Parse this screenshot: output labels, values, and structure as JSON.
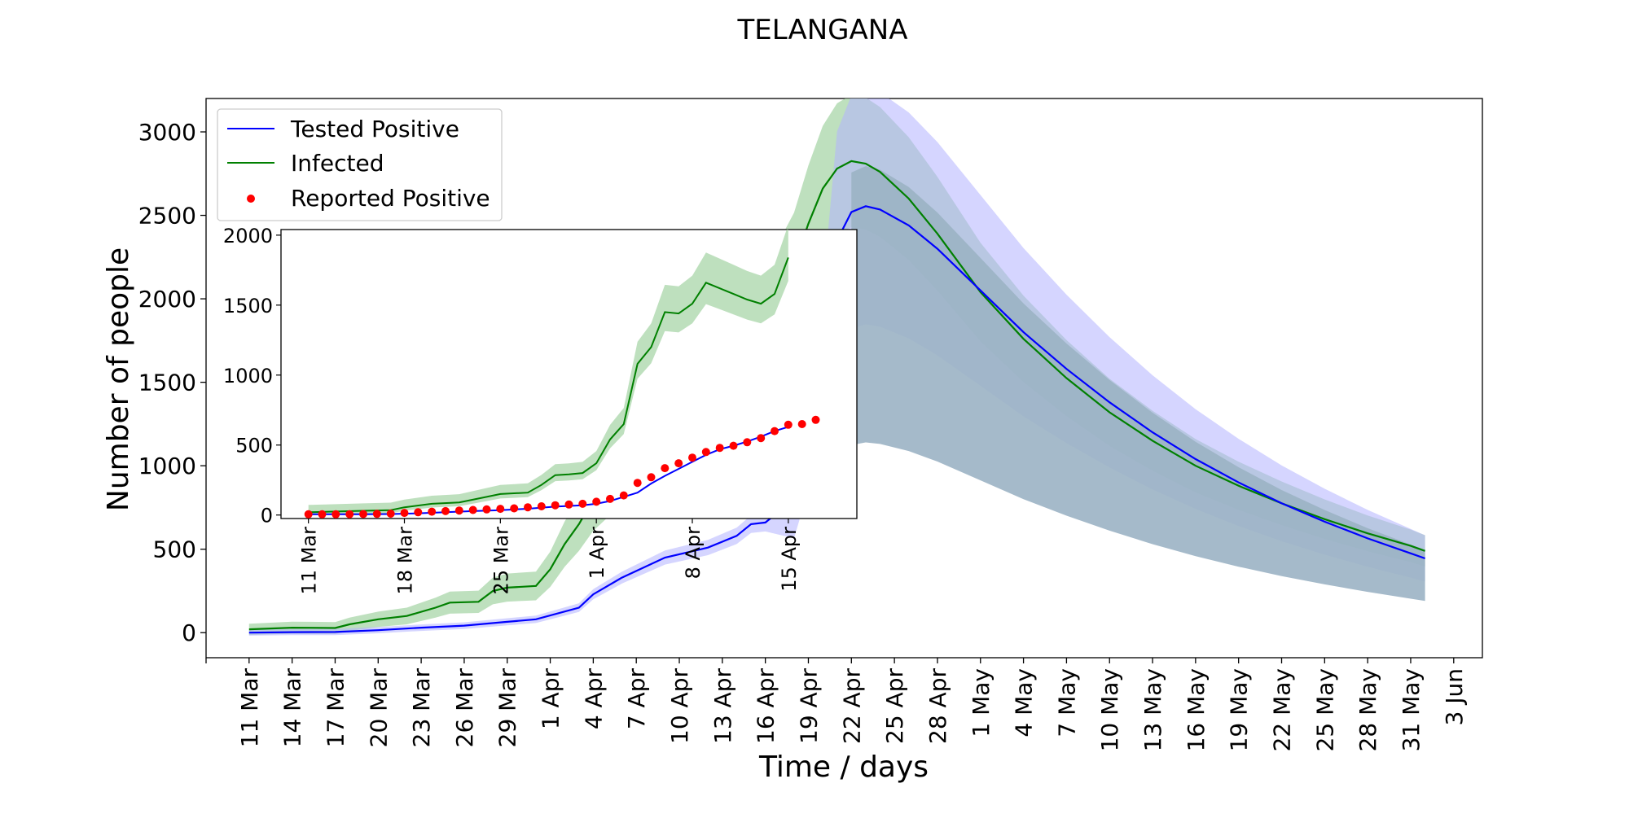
{
  "colors": {
    "tested": "#0000ff",
    "tested_band": "#b3b3ff",
    "infected": "#008000",
    "infected_band": "#a8d5a8",
    "overlap_band": "#9bb3c4",
    "reported": "#ff0000"
  },
  "chart_data": [
    {
      "type": "line",
      "title": "TELANGANA",
      "xlabel": "Time / days",
      "ylabel": "Number of people",
      "x_unit": "date (2020)",
      "xlim": [
        "2020-03-08",
        "2020-06-05"
      ],
      "ylim": [
        -150,
        3200
      ],
      "yticks": [
        0,
        500,
        1000,
        1500,
        2000,
        2500,
        3000
      ],
      "xtick_labels": [
        "11 Mar",
        "14 Mar",
        "17 Mar",
        "20 Mar",
        "23 Mar",
        "26 Mar",
        "29 Mar",
        "1 Apr",
        "4 Apr",
        "7 Apr",
        "10 Apr",
        "13 Apr",
        "16 Apr",
        "19 Apr",
        "22 Apr",
        "25 Apr",
        "28 Apr",
        "1 May",
        "4 May",
        "7 May",
        "10 May",
        "13 May",
        "16 May",
        "19 May",
        "22 May",
        "25 May",
        "28 May",
        "31 May",
        "3 Jun"
      ],
      "legend_position": "upper-left",
      "grid": false,
      "series": [
        {
          "name": "Tested Positive",
          "kind": "line",
          "band": "blue",
          "points": [
            [
              "2020-03-11",
              0
            ],
            [
              "2020-03-14",
              3
            ],
            [
              "2020-03-17",
              4
            ],
            [
              "2020-03-20",
              15
            ],
            [
              "2020-03-23",
              30
            ],
            [
              "2020-03-26",
              42
            ],
            [
              "2020-03-29",
              65
            ],
            [
              "2020-03-31",
              80
            ],
            [
              "2020-04-03",
              150
            ],
            [
              "2020-04-04",
              230
            ],
            [
              "2020-04-06",
              330
            ],
            [
              "2020-04-09",
              450
            ],
            [
              "2020-04-12",
              510
            ],
            [
              "2020-04-14",
              580
            ],
            [
              "2020-04-15",
              650
            ],
            [
              "2020-04-16",
              660
            ],
            [
              "2020-04-18",
              800
            ],
            [
              "2020-04-20",
              1600
            ],
            [
              "2020-04-21",
              2350
            ],
            [
              "2020-04-22",
              2520
            ],
            [
              "2020-04-23",
              2555
            ],
            [
              "2020-04-24",
              2535
            ],
            [
              "2020-04-26",
              2440
            ],
            [
              "2020-04-28",
              2300
            ],
            [
              "2020-05-01",
              2050
            ],
            [
              "2020-05-04",
              1800
            ],
            [
              "2020-05-07",
              1580
            ],
            [
              "2020-05-10",
              1380
            ],
            [
              "2020-05-13",
              1200
            ],
            [
              "2020-05-16",
              1040
            ],
            [
              "2020-05-19",
              900
            ],
            [
              "2020-05-22",
              775
            ],
            [
              "2020-05-25",
              665
            ],
            [
              "2020-05-28",
              565
            ],
            [
              "2020-05-31",
              475
            ],
            [
              "2020-06-01",
              445
            ]
          ]
        },
        {
          "name": "Infected",
          "kind": "line",
          "band": "green",
          "points": [
            [
              "2020-03-11",
              20
            ],
            [
              "2020-03-14",
              30
            ],
            [
              "2020-03-17",
              28
            ],
            [
              "2020-03-18",
              50
            ],
            [
              "2020-03-20",
              80
            ],
            [
              "2020-03-22",
              100
            ],
            [
              "2020-03-24",
              150
            ],
            [
              "2020-03-25",
              180
            ],
            [
              "2020-03-27",
              185
            ],
            [
              "2020-03-28",
              250
            ],
            [
              "2020-03-29",
              270
            ],
            [
              "2020-03-31",
              280
            ],
            [
              "2020-04-01",
              380
            ],
            [
              "2020-04-02",
              530
            ],
            [
              "2020-04-03",
              650
            ],
            [
              "2020-04-04",
              800
            ],
            [
              "2020-04-06",
              1000
            ],
            [
              "2020-04-08",
              1300
            ],
            [
              "2020-04-10",
              1400
            ],
            [
              "2020-04-12",
              1600
            ],
            [
              "2020-04-14",
              1700
            ],
            [
              "2020-04-16",
              1800
            ],
            [
              "2020-04-18",
              2200
            ],
            [
              "2020-04-19",
              2450
            ],
            [
              "2020-04-20",
              2660
            ],
            [
              "2020-04-21",
              2780
            ],
            [
              "2020-04-22",
              2825
            ],
            [
              "2020-04-23",
              2810
            ],
            [
              "2020-04-24",
              2760
            ],
            [
              "2020-04-26",
              2600
            ],
            [
              "2020-04-28",
              2390
            ],
            [
              "2020-05-01",
              2040
            ],
            [
              "2020-05-04",
              1760
            ],
            [
              "2020-05-07",
              1525
            ],
            [
              "2020-05-10",
              1320
            ],
            [
              "2020-05-13",
              1150
            ],
            [
              "2020-05-16",
              1000
            ],
            [
              "2020-05-19",
              880
            ],
            [
              "2020-05-22",
              775
            ],
            [
              "2020-05-25",
              680
            ],
            [
              "2020-05-28",
              595
            ],
            [
              "2020-05-31",
              520
            ],
            [
              "2020-06-01",
              490
            ]
          ]
        },
        {
          "name": "Reported Positive",
          "kind": "scatter",
          "points": []
        }
      ]
    },
    {
      "type": "line",
      "inset": true,
      "title": "",
      "xlabel": "",
      "ylabel": "",
      "x_unit": "date (2020)",
      "xlim": [
        "2020-03-09",
        "2020-04-20"
      ],
      "ylim": [
        -25,
        2040
      ],
      "yticks": [
        0,
        500,
        1000,
        1500,
        2000
      ],
      "xtick_labels": [
        "11 Mar",
        "18 Mar",
        "25 Mar",
        "1 Apr",
        "8 Apr",
        "15 Apr"
      ],
      "grid": false,
      "series": [
        {
          "name": "Tested Positive",
          "kind": "line",
          "points": [
            [
              "2020-03-11",
              5
            ],
            [
              "2020-03-13",
              5
            ],
            [
              "2020-03-15",
              6
            ],
            [
              "2020-03-17",
              7
            ],
            [
              "2020-03-19",
              12
            ],
            [
              "2020-03-21",
              20
            ],
            [
              "2020-03-23",
              28
            ],
            [
              "2020-03-25",
              35
            ],
            [
              "2020-03-27",
              45
            ],
            [
              "2020-03-29",
              60
            ],
            [
              "2020-03-31",
              70
            ],
            [
              "2020-04-01",
              80
            ],
            [
              "2020-04-02",
              100
            ],
            [
              "2020-04-03",
              130
            ],
            [
              "2020-04-04",
              160
            ],
            [
              "2020-04-05",
              225
            ],
            [
              "2020-04-06",
              280
            ],
            [
              "2020-04-07",
              330
            ],
            [
              "2020-04-08",
              380
            ],
            [
              "2020-04-09",
              430
            ],
            [
              "2020-04-10",
              470
            ],
            [
              "2020-04-11",
              495
            ],
            [
              "2020-04-12",
              525
            ],
            [
              "2020-04-13",
              560
            ],
            [
              "2020-04-14",
              600
            ],
            [
              "2020-04-15",
              630
            ]
          ]
        },
        {
          "name": "Infected",
          "kind": "line",
          "points": [
            [
              "2020-03-11",
              20
            ],
            [
              "2020-03-13",
              25
            ],
            [
              "2020-03-15",
              30
            ],
            [
              "2020-03-17",
              35
            ],
            [
              "2020-03-18",
              55
            ],
            [
              "2020-03-20",
              80
            ],
            [
              "2020-03-22",
              90
            ],
            [
              "2020-03-24",
              130
            ],
            [
              "2020-03-25",
              150
            ],
            [
              "2020-03-27",
              160
            ],
            [
              "2020-03-28",
              215
            ],
            [
              "2020-03-29",
              285
            ],
            [
              "2020-03-30",
              290
            ],
            [
              "2020-03-31",
              300
            ],
            [
              "2020-04-01",
              370
            ],
            [
              "2020-04-02",
              540
            ],
            [
              "2020-04-03",
              650
            ],
            [
              "2020-04-04",
              1080
            ],
            [
              "2020-04-05",
              1200
            ],
            [
              "2020-04-06",
              1450
            ],
            [
              "2020-04-07",
              1440
            ],
            [
              "2020-04-08",
              1510
            ],
            [
              "2020-04-09",
              1660
            ],
            [
              "2020-04-10",
              1620
            ],
            [
              "2020-04-11",
              1580
            ],
            [
              "2020-04-12",
              1540
            ],
            [
              "2020-04-13",
              1510
            ],
            [
              "2020-04-14",
              1580
            ],
            [
              "2020-04-15",
              1840
            ]
          ]
        },
        {
          "name": "Reported Positive",
          "kind": "scatter",
          "points": [
            [
              "2020-03-11",
              5
            ],
            [
              "2020-03-12",
              5
            ],
            [
              "2020-03-13",
              5
            ],
            [
              "2020-03-14",
              6
            ],
            [
              "2020-03-15",
              7
            ],
            [
              "2020-03-16",
              8
            ],
            [
              "2020-03-17",
              10
            ],
            [
              "2020-03-18",
              15
            ],
            [
              "2020-03-19",
              20
            ],
            [
              "2020-03-20",
              24
            ],
            [
              "2020-03-21",
              28
            ],
            [
              "2020-03-22",
              32
            ],
            [
              "2020-03-23",
              36
            ],
            [
              "2020-03-24",
              40
            ],
            [
              "2020-03-25",
              44
            ],
            [
              "2020-03-26",
              48
            ],
            [
              "2020-03-27",
              55
            ],
            [
              "2020-03-28",
              62
            ],
            [
              "2020-03-29",
              70
            ],
            [
              "2020-03-30",
              75
            ],
            [
              "2020-03-31",
              80
            ],
            [
              "2020-04-01",
              95
            ],
            [
              "2020-04-02",
              115
            ],
            [
              "2020-04-03",
              140
            ],
            [
              "2020-04-04",
              230
            ],
            [
              "2020-04-05",
              270
            ],
            [
              "2020-04-06",
              335
            ],
            [
              "2020-04-07",
              370
            ],
            [
              "2020-04-08",
              410
            ],
            [
              "2020-04-09",
              450
            ],
            [
              "2020-04-10",
              480
            ],
            [
              "2020-04-11",
              495
            ],
            [
              "2020-04-12",
              520
            ],
            [
              "2020-04-13",
              550
            ],
            [
              "2020-04-14",
              600
            ],
            [
              "2020-04-15",
              645
            ],
            [
              "2020-04-16",
              650
            ],
            [
              "2020-04-17",
              680
            ]
          ]
        }
      ]
    }
  ]
}
